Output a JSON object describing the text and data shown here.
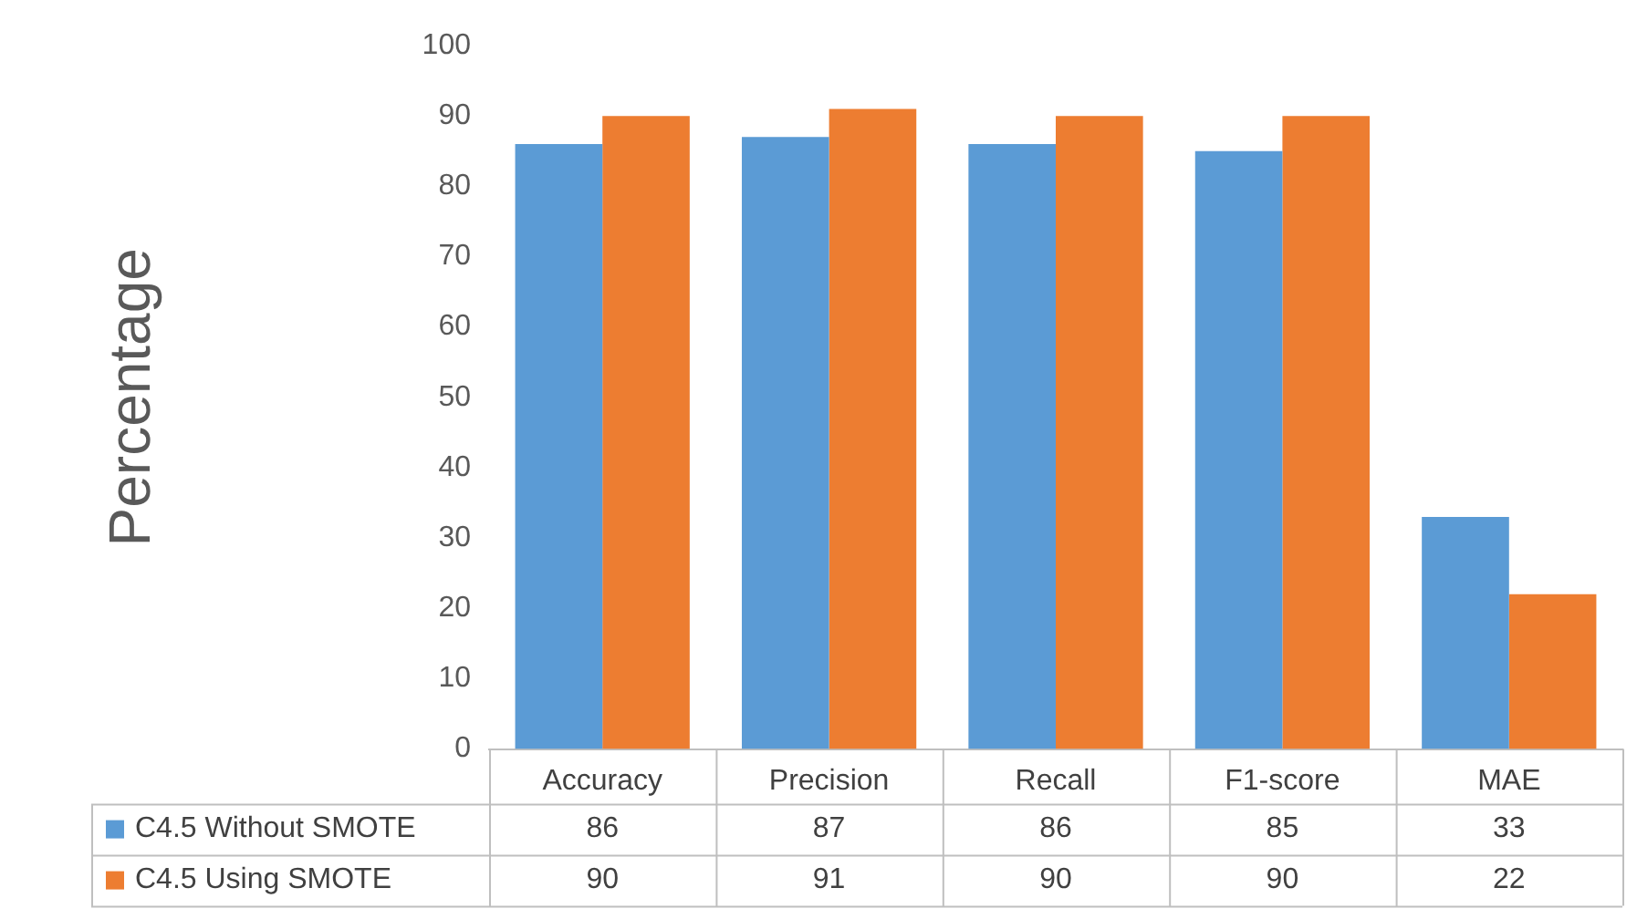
{
  "chart_data": {
    "type": "bar",
    "ylabel": "Percentage",
    "categories": [
      "Accuracy",
      "Precision",
      "Recall",
      "F1-score",
      "MAE"
    ],
    "series": [
      {
        "name": "C4.5 Without SMOTE",
        "color": "#5b9bd5",
        "values": [
          86,
          87,
          86,
          85,
          33
        ]
      },
      {
        "name": "C4.5 Using SMOTE",
        "color": "#ed7d31",
        "values": [
          90,
          91,
          90,
          90,
          22
        ]
      }
    ],
    "ylim": [
      0,
      100
    ],
    "yticks": [
      0,
      10,
      20,
      30,
      40,
      50,
      60,
      70,
      80,
      90,
      100
    ],
    "grid": false,
    "legend": "bottom",
    "data_labels": true
  }
}
